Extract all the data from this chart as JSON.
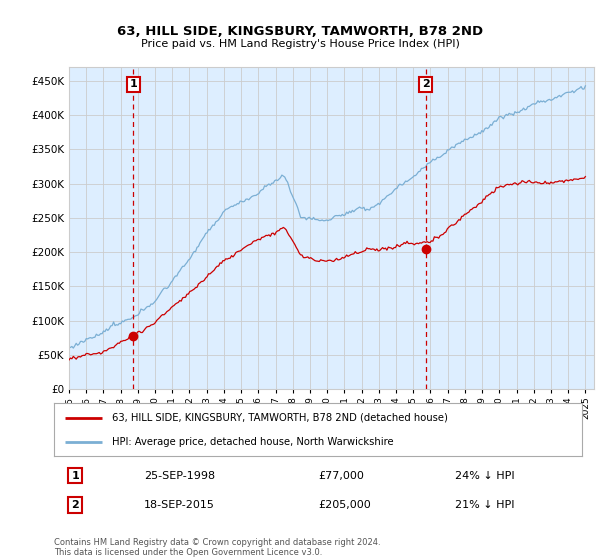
{
  "title": "63, HILL SIDE, KINGSBURY, TAMWORTH, B78 2ND",
  "subtitle": "Price paid vs. HM Land Registry's House Price Index (HPI)",
  "red_label": "63, HILL SIDE, KINGSBURY, TAMWORTH, B78 2ND (detached house)",
  "blue_label": "HPI: Average price, detached house, North Warwickshire",
  "annotation1_date": "25-SEP-1998",
  "annotation1_price": "£77,000",
  "annotation1_hpi": "24% ↓ HPI",
  "annotation2_date": "18-SEP-2015",
  "annotation2_price": "£205,000",
  "annotation2_hpi": "21% ↓ HPI",
  "footnote": "Contains HM Land Registry data © Crown copyright and database right 2024.\nThis data is licensed under the Open Government Licence v3.0.",
  "ylim_min": 0,
  "ylim_max": 470000,
  "red_color": "#cc0000",
  "blue_color": "#7bafd4",
  "vline_color": "#cc0000",
  "grid_color": "#cccccc",
  "background_color": "#ffffff",
  "plot_bg_color": "#ddeeff",
  "anno_year1": 1998.73,
  "anno_year2": 2015.72,
  "anno_price1": 77000,
  "anno_price2": 205000
}
